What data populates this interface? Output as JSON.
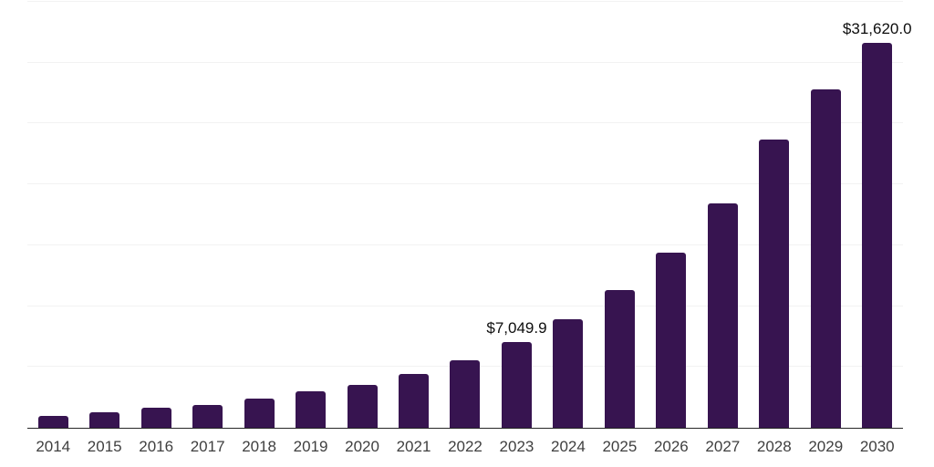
{
  "chart_data": {
    "type": "bar",
    "title": "",
    "xlabel": "",
    "ylabel": "",
    "categories": [
      "2014",
      "2015",
      "2016",
      "2017",
      "2018",
      "2019",
      "2020",
      "2021",
      "2022",
      "2023",
      "2024",
      "2025",
      "2026",
      "2027",
      "2028",
      "2029",
      "2030"
    ],
    "values": [
      1000,
      1270,
      1620,
      1890,
      2395,
      2990,
      3490,
      4460,
      5560,
      7049.9,
      8900,
      11340,
      14410,
      18450,
      23710,
      27770,
      31620.0
    ],
    "value_labels": {
      "2023": "$7,049.9",
      "2030": "$31,620.0"
    },
    "ylim": [
      0,
      35000
    ],
    "grid_step": 5000,
    "grid": true,
    "legend": false,
    "colors": {
      "bar": "#371450",
      "axis_line": "#262626",
      "gridline": "#f2f2f2",
      "tick_label": "#3f3f3f",
      "data_label": "#0d0d0d",
      "background": "#ffffff"
    }
  }
}
